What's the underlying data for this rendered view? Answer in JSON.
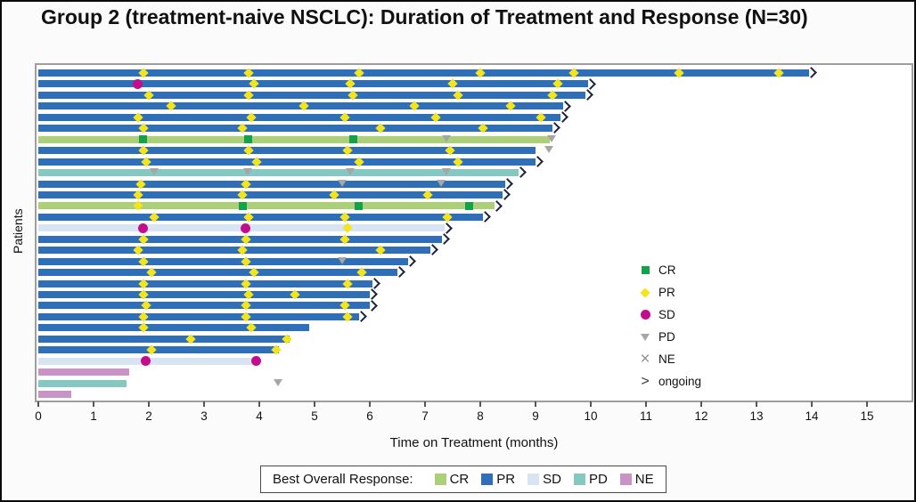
{
  "title": "Group 2 (treatment-naive NSCLC): Duration of Treatment and Response (N=30)",
  "chart_data": {
    "type": "bar",
    "subtype": "swimmer-plot",
    "title": "Group 2 (treatment-naive NSCLC): Duration of Treatment and Response (N=30)",
    "xlabel": "Time on Treatment (months)",
    "ylabel": "Patients",
    "xlim": [
      0,
      15.8
    ],
    "xticks": [
      "0",
      "1",
      "2",
      "3",
      "4",
      "5",
      "6",
      "7",
      "8",
      "9",
      "10",
      "11",
      "12",
      "13",
      "14",
      "15"
    ],
    "grid": false,
    "bar_colors": {
      "CR": "#abd077",
      "PR": "#2e6fb8",
      "SD": "#d9e4f2",
      "PD": "#85c8c2",
      "NE": "#c993c5"
    },
    "marker_colors": {
      "CR": "#13a14b",
      "PR": "#f3e41d",
      "SD": "#c40d8c",
      "PD": "#a6a6a6",
      "NE": "#909090",
      "ongoing": "#1a2440"
    },
    "marker_legend": [
      {
        "symbol": "square",
        "label": "CR"
      },
      {
        "symbol": "diamond",
        "label": "PR"
      },
      {
        "symbol": "circle",
        "label": "SD"
      },
      {
        "symbol": "triangle",
        "label": "PD"
      },
      {
        "symbol": "x",
        "label": "NE"
      },
      {
        "symbol": "chevron",
        "label": "ongoing"
      }
    ],
    "bar_legend": {
      "title": "Best Overall Response:",
      "items": [
        {
          "label": "CR",
          "color": "#abd077"
        },
        {
          "label": "PR",
          "color": "#2e6fb8"
        },
        {
          "label": "SD",
          "color": "#d9e4f2"
        },
        {
          "label": "PD",
          "color": "#85c8c2"
        },
        {
          "label": "NE",
          "color": "#c993c5"
        }
      ]
    },
    "patients": [
      {
        "best_response": "PR",
        "end": 13.95,
        "ongoing": true,
        "markers": [
          {
            "type": "PR",
            "month": 1.9
          },
          {
            "type": "PR",
            "month": 3.8
          },
          {
            "type": "PR",
            "month": 5.8
          },
          {
            "type": "PR",
            "month": 8.0
          },
          {
            "type": "PR",
            "month": 9.7
          },
          {
            "type": "PR",
            "month": 11.6
          },
          {
            "type": "PR",
            "month": 13.4
          }
        ]
      },
      {
        "best_response": "PR",
        "end": 9.95,
        "ongoing": true,
        "markers": [
          {
            "type": "SD",
            "month": 1.8
          },
          {
            "type": "PR",
            "month": 3.9
          },
          {
            "type": "PR",
            "month": 5.65
          },
          {
            "type": "PR",
            "month": 7.5
          },
          {
            "type": "PR",
            "month": 9.4
          }
        ]
      },
      {
        "best_response": "PR",
        "end": 9.9,
        "ongoing": true,
        "markers": [
          {
            "type": "PR",
            "month": 2.0
          },
          {
            "type": "PR",
            "month": 3.8
          },
          {
            "type": "PR",
            "month": 5.7
          },
          {
            "type": "PR",
            "month": 7.6
          },
          {
            "type": "PR",
            "month": 9.3
          }
        ]
      },
      {
        "best_response": "PR",
        "end": 9.5,
        "ongoing": true,
        "markers": [
          {
            "type": "PR",
            "month": 2.4
          },
          {
            "type": "PR",
            "month": 4.8
          },
          {
            "type": "PR",
            "month": 6.8
          },
          {
            "type": "PR",
            "month": 8.55
          }
        ]
      },
      {
        "best_response": "PR",
        "end": 9.45,
        "ongoing": true,
        "markers": [
          {
            "type": "PR",
            "month": 1.8
          },
          {
            "type": "PR",
            "month": 3.85
          },
          {
            "type": "PR",
            "month": 5.55
          },
          {
            "type": "PR",
            "month": 7.2
          },
          {
            "type": "PR",
            "month": 9.1
          }
        ]
      },
      {
        "best_response": "PR",
        "end": 9.3,
        "ongoing": true,
        "markers": [
          {
            "type": "PR",
            "month": 1.9
          },
          {
            "type": "PR",
            "month": 3.7
          },
          {
            "type": "PR",
            "month": 6.2
          },
          {
            "type": "PR",
            "month": 8.05
          }
        ]
      },
      {
        "best_response": "CR",
        "end": 9.25,
        "ongoing": false,
        "markers": [
          {
            "type": "CR",
            "month": 1.9
          },
          {
            "type": "CR",
            "month": 3.8
          },
          {
            "type": "CR",
            "month": 5.7
          },
          {
            "type": "PD",
            "month": 7.4
          },
          {
            "type": "PD",
            "month": 9.3
          }
        ]
      },
      {
        "best_response": "PR",
        "end": 9.0,
        "ongoing": false,
        "markers": [
          {
            "type": "PR",
            "month": 1.9
          },
          {
            "type": "PR",
            "month": 3.8
          },
          {
            "type": "PR",
            "month": 5.6
          },
          {
            "type": "PR",
            "month": 7.45
          },
          {
            "type": "PD",
            "month": 9.25
          }
        ]
      },
      {
        "best_response": "PR",
        "end": 9.0,
        "ongoing": true,
        "markers": [
          {
            "type": "PR",
            "month": 1.95
          },
          {
            "type": "PR",
            "month": 3.95
          },
          {
            "type": "PR",
            "month": 5.8
          },
          {
            "type": "PR",
            "month": 7.6
          }
        ]
      },
      {
        "best_response": "PD",
        "end": 8.7,
        "ongoing": true,
        "markers": [
          {
            "type": "PD",
            "month": 2.1
          },
          {
            "type": "PD",
            "month": 3.8
          },
          {
            "type": "PD",
            "month": 5.65
          },
          {
            "type": "PD",
            "month": 7.4
          }
        ]
      },
      {
        "best_response": "PR",
        "end": 8.45,
        "ongoing": true,
        "markers": [
          {
            "type": "PR",
            "month": 1.85
          },
          {
            "type": "PR",
            "month": 3.75
          },
          {
            "type": "PD",
            "month": 5.5
          },
          {
            "type": "PD",
            "month": 7.3
          }
        ]
      },
      {
        "best_response": "PR",
        "end": 8.4,
        "ongoing": true,
        "markers": [
          {
            "type": "PR",
            "month": 1.8
          },
          {
            "type": "PR",
            "month": 3.7
          },
          {
            "type": "PR",
            "month": 5.35
          },
          {
            "type": "PR",
            "month": 7.05
          }
        ]
      },
      {
        "best_response": "CR",
        "end": 8.25,
        "ongoing": true,
        "markers": [
          {
            "type": "PR",
            "month": 1.8
          },
          {
            "type": "CR",
            "month": 3.7
          },
          {
            "type": "CR",
            "month": 5.8
          },
          {
            "type": "CR",
            "month": 7.8
          }
        ]
      },
      {
        "best_response": "PR",
        "end": 8.05,
        "ongoing": true,
        "markers": [
          {
            "type": "PR",
            "month": 2.1
          },
          {
            "type": "PR",
            "month": 3.8
          },
          {
            "type": "PR",
            "month": 5.55
          },
          {
            "type": "PR",
            "month": 7.4
          }
        ]
      },
      {
        "best_response": "SD",
        "end": 7.35,
        "ongoing": true,
        "markers": [
          {
            "type": "SD",
            "month": 1.9
          },
          {
            "type": "SD",
            "month": 3.75
          },
          {
            "type": "PR",
            "month": 5.6
          }
        ]
      },
      {
        "best_response": "PR",
        "end": 7.3,
        "ongoing": true,
        "markers": [
          {
            "type": "PR",
            "month": 1.9
          },
          {
            "type": "PR",
            "month": 3.75
          },
          {
            "type": "PR",
            "month": 5.55
          }
        ]
      },
      {
        "best_response": "PR",
        "end": 7.1,
        "ongoing": true,
        "markers": [
          {
            "type": "PR",
            "month": 1.8
          },
          {
            "type": "PR",
            "month": 3.7
          },
          {
            "type": "PR",
            "month": 6.2
          }
        ]
      },
      {
        "best_response": "PR",
        "end": 6.7,
        "ongoing": true,
        "markers": [
          {
            "type": "PR",
            "month": 1.9
          },
          {
            "type": "PR",
            "month": 3.75
          },
          {
            "type": "PD",
            "month": 5.5
          }
        ]
      },
      {
        "best_response": "PR",
        "end": 6.5,
        "ongoing": true,
        "markers": [
          {
            "type": "PR",
            "month": 2.05
          },
          {
            "type": "PR",
            "month": 3.9
          },
          {
            "type": "PR",
            "month": 5.85
          }
        ]
      },
      {
        "best_response": "PR",
        "end": 6.05,
        "ongoing": true,
        "markers": [
          {
            "type": "PR",
            "month": 1.9
          },
          {
            "type": "PR",
            "month": 3.75
          },
          {
            "type": "PR",
            "month": 5.6
          }
        ]
      },
      {
        "best_response": "PR",
        "end": 6.0,
        "ongoing": true,
        "markers": [
          {
            "type": "PR",
            "month": 1.9
          },
          {
            "type": "PR",
            "month": 3.8
          },
          {
            "type": "PR",
            "month": 4.65
          }
        ]
      },
      {
        "best_response": "PR",
        "end": 6.0,
        "ongoing": true,
        "markers": [
          {
            "type": "PR",
            "month": 1.95
          },
          {
            "type": "PR",
            "month": 3.75
          },
          {
            "type": "PR",
            "month": 5.55
          }
        ]
      },
      {
        "best_response": "PR",
        "end": 5.8,
        "ongoing": true,
        "markers": [
          {
            "type": "PR",
            "month": 1.9
          },
          {
            "type": "PR",
            "month": 3.75
          },
          {
            "type": "PR",
            "month": 5.6
          }
        ]
      },
      {
        "best_response": "PR",
        "end": 4.9,
        "ongoing": false,
        "markers": [
          {
            "type": "PR",
            "month": 1.9
          },
          {
            "type": "PR",
            "month": 3.85
          }
        ]
      },
      {
        "best_response": "PR",
        "end": 4.55,
        "ongoing": false,
        "markers": [
          {
            "type": "PR",
            "month": 2.75
          },
          {
            "type": "PR",
            "month": 4.5
          }
        ]
      },
      {
        "best_response": "PR",
        "end": 4.35,
        "ongoing": false,
        "markers": [
          {
            "type": "PR",
            "month": 2.05
          },
          {
            "type": "PR",
            "month": 4.3
          }
        ]
      },
      {
        "best_response": "SD",
        "end": 4.0,
        "ongoing": false,
        "markers": [
          {
            "type": "SD",
            "month": 1.95
          },
          {
            "type": "SD",
            "month": 3.95
          }
        ]
      },
      {
        "best_response": "NE",
        "end": 1.65,
        "ongoing": false,
        "markers": []
      },
      {
        "best_response": "PD",
        "end": 1.6,
        "ongoing": false,
        "markers": [
          {
            "type": "PD",
            "month": 4.35
          }
        ]
      },
      {
        "best_response": "NE",
        "end": 0.6,
        "ongoing": false,
        "markers": []
      }
    ]
  }
}
